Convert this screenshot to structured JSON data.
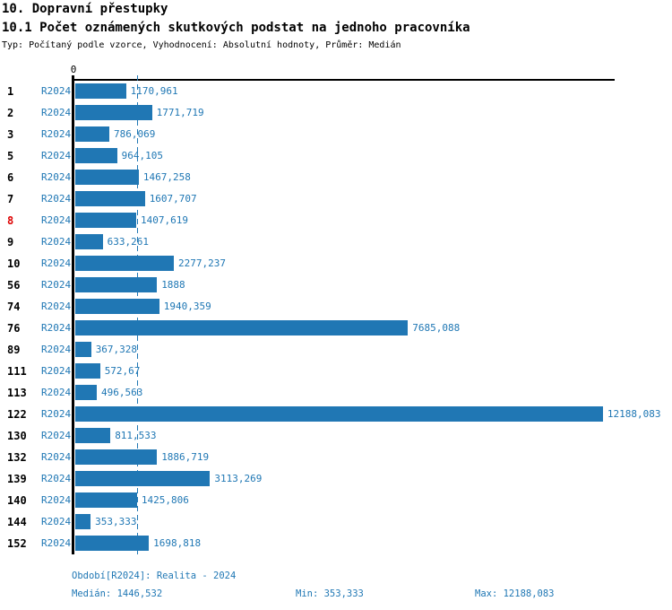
{
  "header": {
    "title1": "10. Dopravní přestupky",
    "title2": "10.1 Počet oznámených skutkových podstat na jednoho pracovníka",
    "subtitle": "Typ: Počítaný podle vzorce, Vyhodnocení: Absolutní hodnoty, Průměr: Medián"
  },
  "chart_data": {
    "type": "bar",
    "orientation": "horizontal",
    "title": "10.1 Počet oznámených skutkových podstat na jednoho pracovníka",
    "axis_origin_label": "0",
    "series_label": "R2024",
    "categories": [
      "1",
      "2",
      "3",
      "5",
      "6",
      "7",
      "8",
      "9",
      "10",
      "56",
      "74",
      "76",
      "89",
      "111",
      "113",
      "122",
      "130",
      "132",
      "139",
      "140",
      "144",
      "152"
    ],
    "values": [
      1170.961,
      1771.719,
      786.069,
      964.105,
      1467.258,
      1607.707,
      1407.619,
      633.261,
      2277.237,
      1888,
      1940.359,
      7685.088,
      367.328,
      572.67,
      496.563,
      12188.083,
      811.533,
      1886.719,
      3113.269,
      1425.806,
      353.333,
      1698.818
    ],
    "value_labels": [
      "1170,961",
      "1771,719",
      "786,069",
      "964,105",
      "1467,258",
      "1607,707",
      "1407,619",
      "633,261",
      "2277,237",
      "1888",
      "1940,359",
      "7685,088",
      "367,328",
      "572,67",
      "496,563",
      "12188,083",
      "811,533",
      "1886,719",
      "3113,269",
      "1425,806",
      "353,333",
      "1698,818"
    ],
    "highlighted_category": "8",
    "median_value": 1446.532,
    "min_value": 353.333,
    "max_value": 12188.083,
    "xlim": [
      0,
      12500
    ],
    "grid": false,
    "legend_position": "none",
    "bar_color": "#2077b4",
    "label_color": "#1f77b4",
    "highlight_color": "#dd0000",
    "median_line_style": "dashed"
  },
  "footer": {
    "period": "Období[R2024]: Realita - 2024",
    "median": "Medián: 1446,532",
    "min": "Min: 353,333",
    "max": "Max: 12188,083"
  }
}
